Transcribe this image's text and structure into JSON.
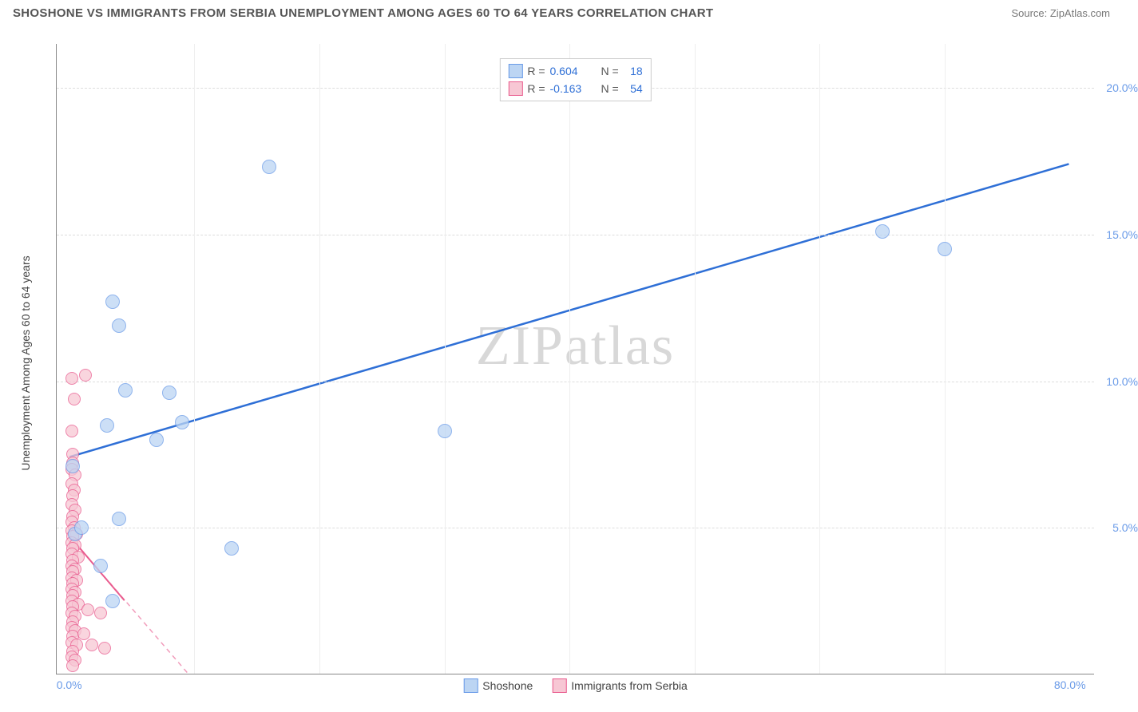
{
  "header": {
    "title": "SHOSHONE VS IMMIGRANTS FROM SERBIA UNEMPLOYMENT AMONG AGES 60 TO 64 YEARS CORRELATION CHART",
    "source": "Source: ZipAtlas.com"
  },
  "watermark": "ZIPatlas",
  "y_axis": {
    "label": "Unemployment Among Ages 60 to 64 years",
    "label_color": "#444444",
    "label_fontsize": 14,
    "ticks": [
      {
        "value": 5.0,
        "label": "5.0%"
      },
      {
        "value": 10.0,
        "label": "10.0%"
      },
      {
        "value": 15.0,
        "label": "15.0%"
      },
      {
        "value": 20.0,
        "label": "20.0%"
      }
    ],
    "tick_color": "#6a9be8",
    "min": 0,
    "max": 21.5
  },
  "x_axis": {
    "ticks": [
      {
        "value": 0.0,
        "label": "0.0%"
      },
      {
        "value": 80.0,
        "label": "80.0%"
      }
    ],
    "tick_color": "#6a9be8",
    "min": -1,
    "max": 82,
    "grid_positions": [
      10,
      20,
      30,
      40,
      50,
      60,
      70
    ]
  },
  "series": [
    {
      "name": "Shoshone",
      "marker_fill": "#bcd5f3",
      "marker_stroke": "#6a9be8",
      "marker_radius": 9,
      "line_color": "#2e6fd6",
      "line_solid": true,
      "R": "0.604",
      "N": "18",
      "trend": {
        "x1": 0,
        "y1": 7.4,
        "x2": 80,
        "y2": 17.4
      },
      "points": [
        {
          "x": 16.0,
          "y": 17.3
        },
        {
          "x": 65.0,
          "y": 15.1
        },
        {
          "x": 70.0,
          "y": 14.5
        },
        {
          "x": 3.5,
          "y": 12.7
        },
        {
          "x": 4.0,
          "y": 11.9
        },
        {
          "x": 4.5,
          "y": 9.7
        },
        {
          "x": 8.0,
          "y": 9.6
        },
        {
          "x": 3.0,
          "y": 8.5
        },
        {
          "x": 9.0,
          "y": 8.6
        },
        {
          "x": 7.0,
          "y": 8.0
        },
        {
          "x": 30.0,
          "y": 8.3
        },
        {
          "x": 4.0,
          "y": 5.3
        },
        {
          "x": 0.5,
          "y": 4.8
        },
        {
          "x": 13.0,
          "y": 4.3
        },
        {
          "x": 2.5,
          "y": 3.7
        },
        {
          "x": 3.5,
          "y": 2.5
        },
        {
          "x": 0.3,
          "y": 7.1
        },
        {
          "x": 1.0,
          "y": 5.0
        }
      ]
    },
    {
      "name": "Immigrants from Serbia",
      "marker_fill": "#f7c7d4",
      "marker_stroke": "#e95b8e",
      "marker_radius": 8,
      "line_color": "#e95b8e",
      "line_solid": false,
      "R": "-0.163",
      "N": "54",
      "trend": {
        "x1": 0,
        "y1": 4.7,
        "x2": 9.5,
        "y2": 0
      },
      "trend_solid": {
        "x1": 0,
        "y1": 4.7,
        "x2": 4.4,
        "y2": 2.5
      },
      "points": [
        {
          "x": 0.2,
          "y": 10.1
        },
        {
          "x": 1.3,
          "y": 10.2
        },
        {
          "x": 0.4,
          "y": 9.4
        },
        {
          "x": 0.2,
          "y": 8.3
        },
        {
          "x": 0.3,
          "y": 7.5
        },
        {
          "x": 0.3,
          "y": 7.2
        },
        {
          "x": 0.2,
          "y": 7.0
        },
        {
          "x": 0.5,
          "y": 6.8
        },
        {
          "x": 0.2,
          "y": 6.5
        },
        {
          "x": 0.4,
          "y": 6.3
        },
        {
          "x": 0.3,
          "y": 6.1
        },
        {
          "x": 0.2,
          "y": 5.8
        },
        {
          "x": 0.5,
          "y": 5.6
        },
        {
          "x": 0.3,
          "y": 5.4
        },
        {
          "x": 0.2,
          "y": 5.2
        },
        {
          "x": 0.4,
          "y": 5.0
        },
        {
          "x": 0.2,
          "y": 4.9
        },
        {
          "x": 0.6,
          "y": 4.8
        },
        {
          "x": 0.3,
          "y": 4.7
        },
        {
          "x": 0.2,
          "y": 4.5
        },
        {
          "x": 0.5,
          "y": 4.4
        },
        {
          "x": 0.3,
          "y": 4.3
        },
        {
          "x": 0.2,
          "y": 4.1
        },
        {
          "x": 0.7,
          "y": 4.0
        },
        {
          "x": 0.3,
          "y": 3.9
        },
        {
          "x": 0.2,
          "y": 3.7
        },
        {
          "x": 0.5,
          "y": 3.6
        },
        {
          "x": 0.3,
          "y": 3.5
        },
        {
          "x": 0.2,
          "y": 3.3
        },
        {
          "x": 0.6,
          "y": 3.2
        },
        {
          "x": 0.3,
          "y": 3.1
        },
        {
          "x": 0.2,
          "y": 2.9
        },
        {
          "x": 0.5,
          "y": 2.8
        },
        {
          "x": 0.3,
          "y": 2.7
        },
        {
          "x": 0.2,
          "y": 2.5
        },
        {
          "x": 0.7,
          "y": 2.4
        },
        {
          "x": 0.3,
          "y": 2.3
        },
        {
          "x": 0.2,
          "y": 2.1
        },
        {
          "x": 0.5,
          "y": 2.0
        },
        {
          "x": 1.5,
          "y": 2.2
        },
        {
          "x": 2.5,
          "y": 2.1
        },
        {
          "x": 0.3,
          "y": 1.8
        },
        {
          "x": 0.2,
          "y": 1.6
        },
        {
          "x": 0.5,
          "y": 1.5
        },
        {
          "x": 0.3,
          "y": 1.3
        },
        {
          "x": 1.2,
          "y": 1.4
        },
        {
          "x": 0.2,
          "y": 1.1
        },
        {
          "x": 0.6,
          "y": 1.0
        },
        {
          "x": 1.8,
          "y": 1.0
        },
        {
          "x": 2.8,
          "y": 0.9
        },
        {
          "x": 0.3,
          "y": 0.8
        },
        {
          "x": 0.2,
          "y": 0.6
        },
        {
          "x": 0.5,
          "y": 0.5
        },
        {
          "x": 0.3,
          "y": 0.3
        }
      ]
    }
  ],
  "legend_top_labels": {
    "R": "R =",
    "N": "N ="
  },
  "legend_value_color": "#2e6fd6",
  "background_color": "#ffffff",
  "grid_color": "#dddddd"
}
